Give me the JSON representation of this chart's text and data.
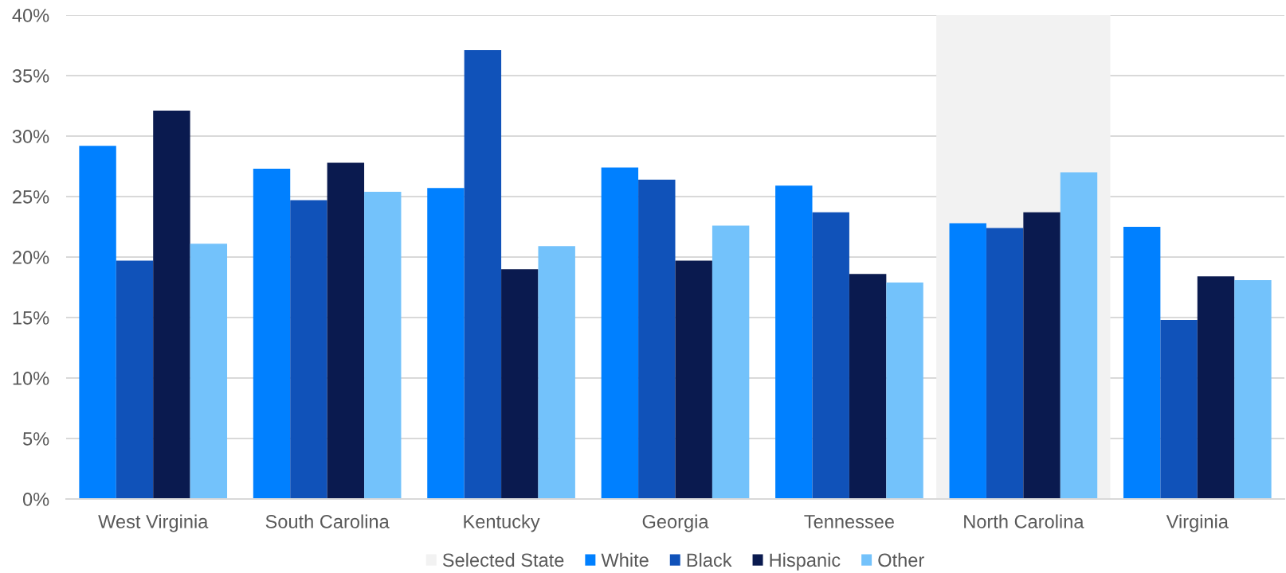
{
  "chart_data": {
    "type": "bar",
    "categories": [
      "West Virginia",
      "South Carolina",
      "Kentucky",
      "Georgia",
      "Tennessee",
      "North Carolina",
      "Virginia"
    ],
    "series": [
      {
        "name": "White",
        "color": "#0080ff",
        "values": [
          29.2,
          27.3,
          25.7,
          27.4,
          25.9,
          22.8,
          22.5
        ]
      },
      {
        "name": "Black",
        "color": "#1052b9",
        "values": [
          19.7,
          24.7,
          37.1,
          26.4,
          23.7,
          22.4,
          14.8
        ]
      },
      {
        "name": "Hispanic",
        "color": "#0a1a4f",
        "values": [
          32.1,
          27.8,
          19.0,
          19.7,
          18.6,
          23.7,
          18.4
        ]
      },
      {
        "name": "Other",
        "color": "#73c2fb",
        "values": [
          21.1,
          25.4,
          20.9,
          22.6,
          17.9,
          27.0,
          18.1
        ]
      }
    ],
    "ylim": [
      0,
      40
    ],
    "yticks": [
      {
        "value": 0,
        "label": "0%"
      },
      {
        "value": 5,
        "label": "5%"
      },
      {
        "value": 10,
        "label": "10%"
      },
      {
        "value": 15,
        "label": "15%"
      },
      {
        "value": 20,
        "label": "20%"
      },
      {
        "value": 25,
        "label": "25%"
      },
      {
        "value": 30,
        "label": "30%"
      },
      {
        "value": 35,
        "label": "35%"
      },
      {
        "value": 40,
        "label": "40%"
      }
    ],
    "grid": "y",
    "legend": "bottom",
    "bands": [
      {
        "axis": "x",
        "from": "North Carolina",
        "to": "North Carolina",
        "label": "Selected State",
        "color": "#f2f2f2"
      }
    ]
  }
}
